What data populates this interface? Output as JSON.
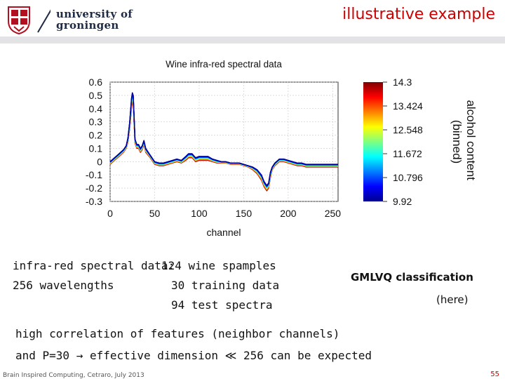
{
  "header": {
    "logo_line1": "university of",
    "logo_line2": "groningen",
    "title": "illustrative example"
  },
  "chart_data": {
    "type": "line",
    "title": "Wine infra-red spectral data",
    "xlabel": "channel",
    "ylabel": "",
    "xlim": [
      0,
      256
    ],
    "ylim": [
      -0.3,
      0.6
    ],
    "xticks": [
      0,
      50,
      100,
      150,
      200,
      250
    ],
    "yticks": [
      -0.3,
      -0.2,
      -0.1,
      0,
      0.1,
      0.2,
      0.3,
      0.4,
      0.5,
      0.6
    ],
    "grid": true,
    "series_envelope": {
      "x": [
        0,
        5,
        10,
        15,
        18,
        20,
        22,
        24,
        25,
        26,
        27,
        28,
        30,
        32,
        34,
        36,
        38,
        40,
        45,
        50,
        55,
        60,
        65,
        70,
        75,
        80,
        85,
        88,
        92,
        96,
        100,
        105,
        110,
        115,
        120,
        125,
        130,
        135,
        140,
        145,
        150,
        155,
        160,
        165,
        170,
        173,
        176,
        178,
        180,
        182,
        185,
        190,
        195,
        200,
        205,
        210,
        215,
        220,
        225,
        230,
        235,
        240,
        245,
        250,
        256
      ],
      "lower": [
        -0.02,
        0.01,
        0.04,
        0.07,
        0.1,
        0.15,
        0.25,
        0.4,
        0.45,
        0.44,
        0.28,
        0.14,
        0.1,
        0.1,
        0.07,
        0.09,
        0.13,
        0.07,
        0.03,
        -0.02,
        -0.03,
        -0.03,
        -0.02,
        -0.01,
        0.0,
        -0.01,
        0.01,
        0.03,
        0.03,
        0.0,
        0.01,
        0.01,
        0.01,
        0.0,
        -0.01,
        -0.01,
        -0.01,
        -0.02,
        -0.02,
        -0.02,
        -0.03,
        -0.04,
        -0.06,
        -0.09,
        -0.14,
        -0.19,
        -0.22,
        -0.2,
        -0.12,
        -0.06,
        -0.03,
        0.0,
        0.0,
        -0.01,
        -0.02,
        -0.03,
        -0.03,
        -0.04,
        -0.04,
        -0.04,
        -0.04,
        -0.04,
        -0.04,
        -0.04,
        -0.04
      ],
      "upper": [
        0.0,
        0.03,
        0.06,
        0.09,
        0.12,
        0.18,
        0.3,
        0.48,
        0.52,
        0.5,
        0.33,
        0.17,
        0.13,
        0.13,
        0.1,
        0.12,
        0.16,
        0.1,
        0.05,
        0.0,
        -0.01,
        -0.01,
        0.0,
        0.01,
        0.02,
        0.01,
        0.04,
        0.06,
        0.06,
        0.03,
        0.04,
        0.04,
        0.04,
        0.02,
        0.01,
        0.0,
        0.0,
        -0.01,
        -0.01,
        -0.01,
        -0.02,
        -0.03,
        -0.04,
        -0.06,
        -0.1,
        -0.15,
        -0.18,
        -0.16,
        -0.08,
        -0.04,
        -0.01,
        0.02,
        0.02,
        0.01,
        0.0,
        -0.01,
        -0.01,
        -0.02,
        -0.02,
        -0.02,
        -0.02,
        -0.02,
        -0.02,
        -0.02,
        -0.02
      ]
    },
    "colorbar": {
      "label": "alcohol content (binned)",
      "ticks": [
        14.3,
        13.424,
        12.548,
        11.672,
        10.796,
        9.92
      ],
      "tick_labels": [
        "14.3",
        "13.424",
        "12.548",
        "11.672",
        "10.796",
        "9.92"
      ],
      "colors": [
        "#00008f",
        "#0000ff",
        "#0080ff",
        "#00ffff",
        "#80ff80",
        "#ffff00",
        "#ff8000",
        "#ff0000",
        "#800000"
      ]
    }
  },
  "text": {
    "line1a": "infra-red spectral data:",
    "line1b": "124 wine spamples",
    "line2a": "256 wavelengths",
    "line2b": "30 training data",
    "line3": "94 test spectra",
    "gmlvq": "GMLVQ classification",
    "here": "(here)",
    "corr": "high correlation of features (neighbor channels)",
    "dim": "and P=30 → effective dimension ≪ 256 can be expected"
  },
  "footer": {
    "left": "Brain Inspired Computing, Cetraro, July 2013",
    "page": "55"
  }
}
